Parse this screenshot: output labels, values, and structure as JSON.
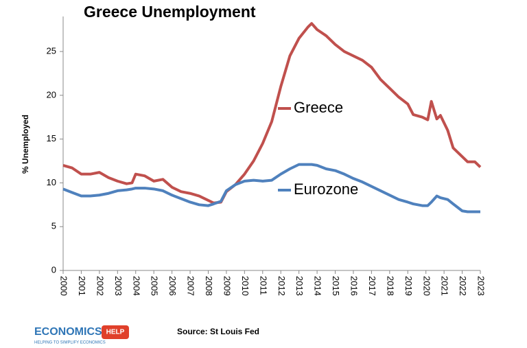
{
  "chart_data": {
    "type": "line",
    "title": "Greece Unemployment",
    "y_label": "% Unemployed",
    "source": "Source: St Louis Fed",
    "x": [
      2000,
      2000.5,
      2001,
      2001.5,
      2002,
      2002.5,
      2003,
      2003.5,
      2003.8,
      2004,
      2004.5,
      2005,
      2005.5,
      2006,
      2006.5,
      2007,
      2007.5,
      2008,
      2008.3,
      2008.7,
      2009,
      2009.5,
      2010,
      2010.5,
      2011,
      2011.5,
      2012,
      2012.5,
      2013,
      2013.5,
      2013.7,
      2014,
      2014.5,
      2015,
      2015.5,
      2016,
      2016.5,
      2017,
      2017.5,
      2018,
      2018.5,
      2019,
      2019.3,
      2019.8,
      2020.1,
      2020.3,
      2020.6,
      2020.8,
      2021.2,
      2021.5,
      2022,
      2022.3,
      2022.7,
      2023
    ],
    "series": [
      {
        "name": "Greece",
        "color": "#c0504d",
        "values": [
          12.0,
          11.7,
          11.0,
          11.0,
          11.2,
          10.6,
          10.2,
          9.9,
          10.0,
          11.0,
          10.8,
          10.2,
          10.4,
          9.5,
          9.0,
          8.8,
          8.5,
          8.0,
          7.7,
          7.8,
          9.0,
          9.8,
          11.0,
          12.5,
          14.5,
          17.0,
          21.0,
          24.5,
          26.5,
          27.8,
          28.2,
          27.5,
          26.8,
          25.8,
          25.0,
          24.5,
          24.0,
          23.2,
          21.8,
          20.8,
          19.8,
          19.0,
          17.8,
          17.5,
          17.2,
          19.3,
          17.3,
          17.7,
          16.0,
          14.0,
          13.0,
          12.4,
          12.4,
          11.8
        ]
      },
      {
        "name": "Eurozone",
        "color": "#4f81bd",
        "values": [
          9.3,
          8.9,
          8.5,
          8.5,
          8.6,
          8.8,
          9.1,
          9.2,
          9.3,
          9.4,
          9.4,
          9.3,
          9.1,
          8.6,
          8.2,
          7.8,
          7.5,
          7.4,
          7.6,
          7.9,
          9.1,
          9.8,
          10.2,
          10.3,
          10.2,
          10.3,
          11.0,
          11.6,
          12.1,
          12.1,
          12.1,
          12.0,
          11.6,
          11.4,
          11.0,
          10.5,
          10.1,
          9.6,
          9.1,
          8.6,
          8.1,
          7.8,
          7.6,
          7.4,
          7.4,
          7.8,
          8.5,
          8.3,
          8.1,
          7.6,
          6.8,
          6.7,
          6.7,
          6.7
        ]
      }
    ],
    "xlim": [
      2000,
      2023
    ],
    "xticks": [
      2000,
      2001,
      2002,
      2003,
      2004,
      2005,
      2006,
      2007,
      2008,
      2009,
      2010,
      2011,
      2012,
      2013,
      2014,
      2015,
      2016,
      2017,
      2018,
      2019,
      2020,
      2021,
      2022,
      2023
    ],
    "ylim": [
      0,
      29
    ],
    "yticks": [
      0,
      5,
      10,
      15,
      20,
      25
    ],
    "grid": false
  },
  "logo": {
    "text": "ECONOMICS",
    "badge": "HELP",
    "tagline": "HELPING TO SIMPLIFY ECONOMICS"
  }
}
